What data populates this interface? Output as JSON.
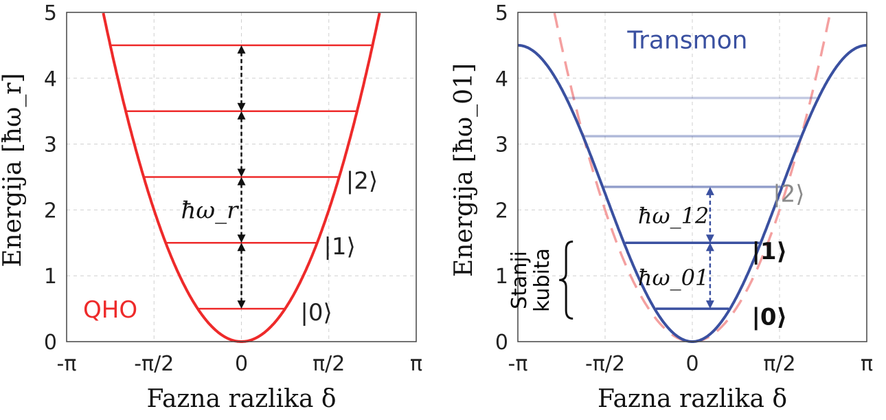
{
  "chart_data": [
    {
      "type": "line",
      "title": "QHO",
      "xlabel": "Fazna razlika δ",
      "ylabel": "Energija [ħω_r]",
      "xlim": [
        -3.1416,
        3.1416
      ],
      "ylim": [
        0,
        5
      ],
      "xticks": [
        {
          "value": -3.1416,
          "label": "-π"
        },
        {
          "value": -1.5708,
          "label": "-π/2"
        },
        {
          "value": 0,
          "label": "0"
        },
        {
          "value": 1.5708,
          "label": "π/2"
        },
        {
          "value": 3.1416,
          "label": "π"
        }
      ],
      "yticks": [
        "0",
        "1",
        "2",
        "3",
        "4",
        "5"
      ],
      "grid": true,
      "color": "#ee2a2a",
      "potential": {
        "form": "parabola",
        "coef": 0.81
      },
      "levels": [
        0.5,
        1.5,
        2.5,
        3.5,
        4.5
      ],
      "state_labels": [
        {
          "text": "|0⟩",
          "x": 1.06,
          "y": 0.45
        },
        {
          "text": "|1⟩",
          "x": 1.48,
          "y": 1.45
        },
        {
          "text": "|2⟩",
          "x": 1.88,
          "y": 2.45
        }
      ],
      "spacing_label": "ħω_r",
      "arrow_x": 0.0
    },
    {
      "type": "line",
      "title": "Transmon",
      "xlabel": "Fazna razlika δ",
      "ylabel": "Energija [ħω_01]",
      "xlim": [
        -3.1416,
        3.1416
      ],
      "ylim": [
        0,
        5
      ],
      "xticks": [
        {
          "value": -3.1416,
          "label": "-π"
        },
        {
          "value": -1.5708,
          "label": "-π/2"
        },
        {
          "value": 0,
          "label": "0"
        },
        {
          "value": 1.5708,
          "label": "π/2"
        },
        {
          "value": 3.1416,
          "label": "π"
        }
      ],
      "yticks": [
        "0",
        "1",
        "2",
        "3",
        "4",
        "5"
      ],
      "grid": true,
      "color": "#3a50a0",
      "potential": {
        "form": "cosine",
        "max": 4.5
      },
      "reference_parabola": {
        "coef": 0.81,
        "color": "#f4a0a0",
        "dashed": true
      },
      "levels": [
        {
          "y": 0.5,
          "opacity": 1.0
        },
        {
          "y": 1.5,
          "opacity": 1.0
        },
        {
          "y": 2.35,
          "opacity": 0.55
        },
        {
          "y": 3.12,
          "opacity": 0.4
        },
        {
          "y": 3.7,
          "opacity": 0.3
        }
      ],
      "state_labels": [
        {
          "text": "|0⟩",
          "x": 1.07,
          "y": 0.38,
          "bold": true,
          "color": "#111111"
        },
        {
          "text": "|1⟩",
          "x": 1.07,
          "y": 1.38,
          "bold": true,
          "color": "#111111"
        },
        {
          "text": "|2⟩",
          "x": 1.45,
          "y": 2.25,
          "bold": false,
          "color": "#8a8a8a"
        }
      ],
      "spacing_labels": [
        "ħω_12",
        "ħω_01"
      ],
      "arrow_x": 0.32,
      "brace_label": [
        "Stanji",
        "kubita"
      ]
    }
  ]
}
